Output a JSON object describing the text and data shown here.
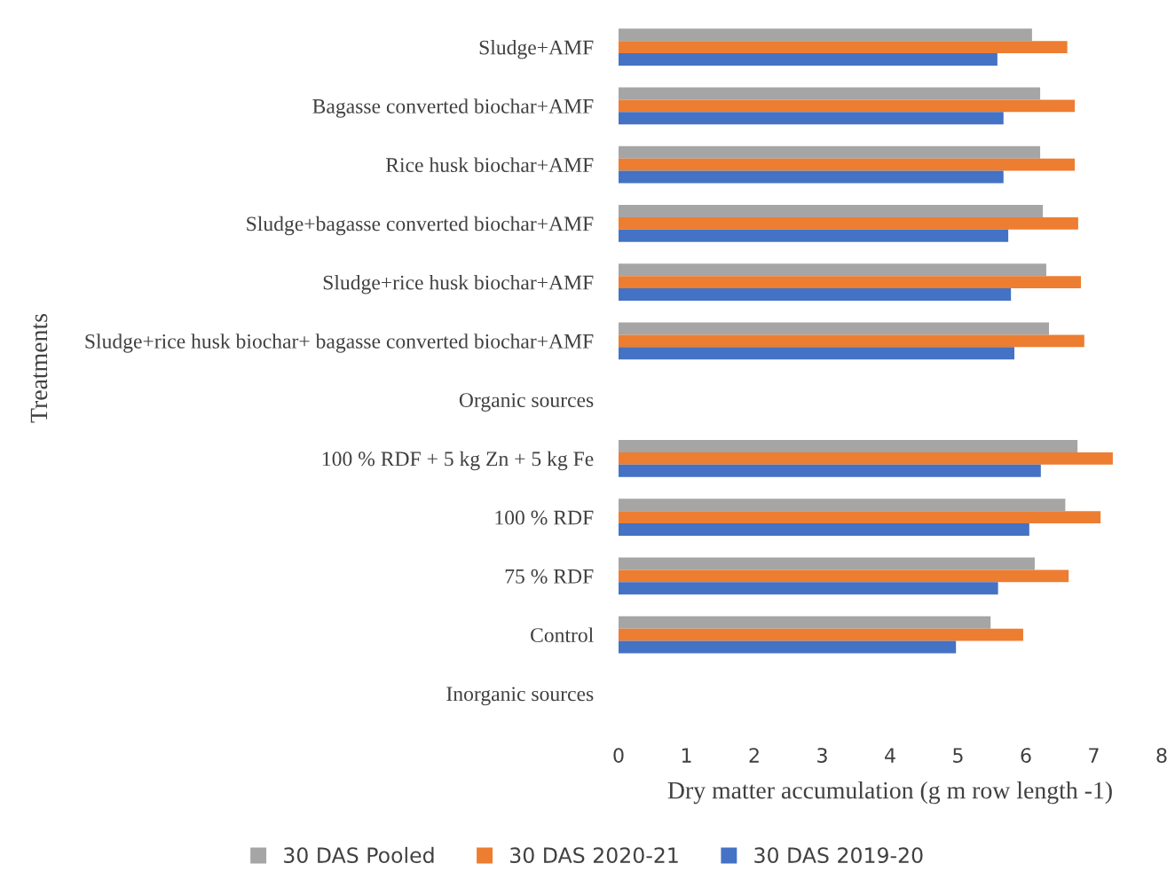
{
  "chart_data": {
    "type": "bar",
    "orientation": "horizontal",
    "xlabel": "Dry matter accumulation (g m row length -1)",
    "ylabel": "Treatments",
    "categories": [
      "Sludge+AMF",
      "Bagasse converted biochar+AMF",
      "Rice husk biochar+AMF",
      "Sludge+bagasse converted biochar+AMF",
      "Sludge+rice husk biochar+AMF",
      "Sludge+rice husk biochar+ bagasse converted biochar+AMF",
      "Organic sources",
      "100 % RDF + 5 kg Zn + 5 kg Fe",
      "100 % RDF",
      "75 % RDF",
      "Control",
      "Inorganic sources"
    ],
    "series": [
      {
        "name": "30 DAS Pooled",
        "color": "#a5a5a5",
        "values": [
          6.09,
          6.21,
          6.21,
          6.25,
          6.3,
          6.34,
          null,
          6.76,
          6.58,
          6.13,
          5.48,
          null
        ]
      },
      {
        "name": "30 DAS 2020-21",
        "color": "#ed7d31",
        "values": [
          6.61,
          6.72,
          6.72,
          6.77,
          6.81,
          6.86,
          null,
          7.28,
          7.1,
          6.63,
          5.96,
          null
        ]
      },
      {
        "name": "30 DAS 2019-20",
        "color": "#4472c4",
        "values": [
          5.58,
          5.67,
          5.67,
          5.74,
          5.78,
          5.83,
          null,
          6.22,
          6.05,
          5.59,
          4.97,
          null
        ]
      }
    ],
    "xlim": [
      0,
      8
    ],
    "xticks": [
      0,
      1,
      2,
      3,
      4,
      5,
      6,
      7,
      8
    ],
    "grid": false,
    "legend": "bottom"
  }
}
